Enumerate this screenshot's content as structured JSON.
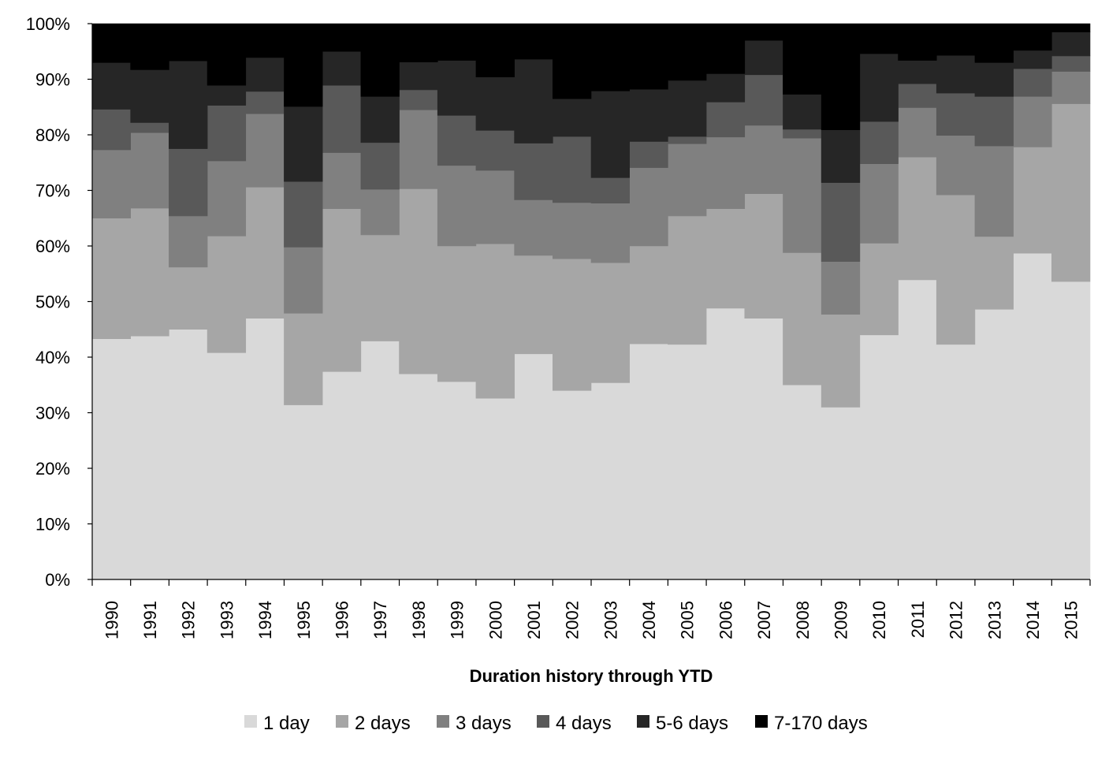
{
  "chart_data": {
    "type": "area",
    "stacked": true,
    "percent": true,
    "step": true,
    "title": "",
    "xlabel": "Duration history through YTD",
    "ylabel": "",
    "ylim": [
      0,
      100
    ],
    "yticks": [
      "0%",
      "10%",
      "20%",
      "30%",
      "40%",
      "50%",
      "60%",
      "70%",
      "80%",
      "90%",
      "100%"
    ],
    "categories": [
      "1990",
      "1991",
      "1992",
      "1993",
      "1994",
      "1995",
      "1996",
      "1997",
      "1998",
      "1999",
      "2000",
      "2001",
      "2002",
      "2003",
      "2004",
      "2005",
      "2006",
      "2007",
      "2008",
      "2009",
      "2010",
      "2011",
      "2012",
      "2013",
      "2014",
      "2015"
    ],
    "legend_position": "bottom",
    "grid": false,
    "series": [
      {
        "name": "1 day",
        "color": "#d9d9d9",
        "values": [
          43.3,
          43.8,
          45.0,
          40.8,
          47.0,
          31.4,
          37.4,
          42.9,
          37.0,
          35.6,
          32.6,
          40.6,
          34.0,
          35.4,
          42.4,
          42.3,
          48.8,
          47.0,
          35.0,
          31.0,
          44.0,
          53.9,
          42.3,
          48.6,
          58.7,
          53.6
        ]
      },
      {
        "name": "2 days",
        "color": "#a6a6a6",
        "values": [
          21.7,
          23.0,
          11.2,
          21.0,
          23.6,
          16.5,
          29.3,
          19.1,
          33.3,
          24.4,
          27.8,
          17.7,
          23.7,
          21.6,
          17.6,
          23.1,
          17.9,
          22.4,
          23.8,
          16.7,
          16.5,
          22.1,
          26.9,
          13.1,
          19.1,
          32.0
        ]
      },
      {
        "name": "3 days",
        "color": "#808080",
        "values": [
          12.3,
          13.6,
          9.2,
          13.5,
          13.2,
          11.9,
          10.1,
          8.2,
          14.2,
          14.5,
          13.2,
          10.0,
          10.1,
          10.7,
          14.1,
          13.0,
          12.9,
          12.3,
          20.6,
          9.5,
          14.3,
          8.9,
          10.7,
          16.3,
          9.1,
          5.8
        ]
      },
      {
        "name": "4 days",
        "color": "#595959",
        "values": [
          7.3,
          1.8,
          12.1,
          10.0,
          4.0,
          11.8,
          12.1,
          8.4,
          3.6,
          9.0,
          7.2,
          10.2,
          11.9,
          4.6,
          4.7,
          1.3,
          6.3,
          9.1,
          1.6,
          14.2,
          7.6,
          4.3,
          7.6,
          8.9,
          5.0,
          2.8
        ]
      },
      {
        "name": "5-6 days",
        "color": "#262626",
        "values": [
          8.4,
          9.5,
          15.8,
          3.6,
          6.1,
          13.5,
          6.1,
          8.3,
          5.0,
          9.9,
          9.6,
          15.1,
          6.8,
          15.6,
          9.4,
          10.1,
          5.1,
          6.2,
          6.3,
          9.5,
          12.2,
          4.2,
          6.8,
          6.1,
          3.3,
          4.3
        ]
      },
      {
        "name": "7-170 days",
        "color": "#000000",
        "values": [
          7.0,
          8.3,
          6.7,
          11.1,
          6.1,
          14.9,
          5.0,
          13.1,
          6.9,
          6.6,
          9.6,
          6.4,
          13.5,
          12.1,
          11.8,
          10.2,
          9.0,
          3.0,
          12.7,
          19.1,
          5.4,
          6.6,
          5.7,
          7.0,
          4.8,
          1.5
        ]
      }
    ]
  }
}
